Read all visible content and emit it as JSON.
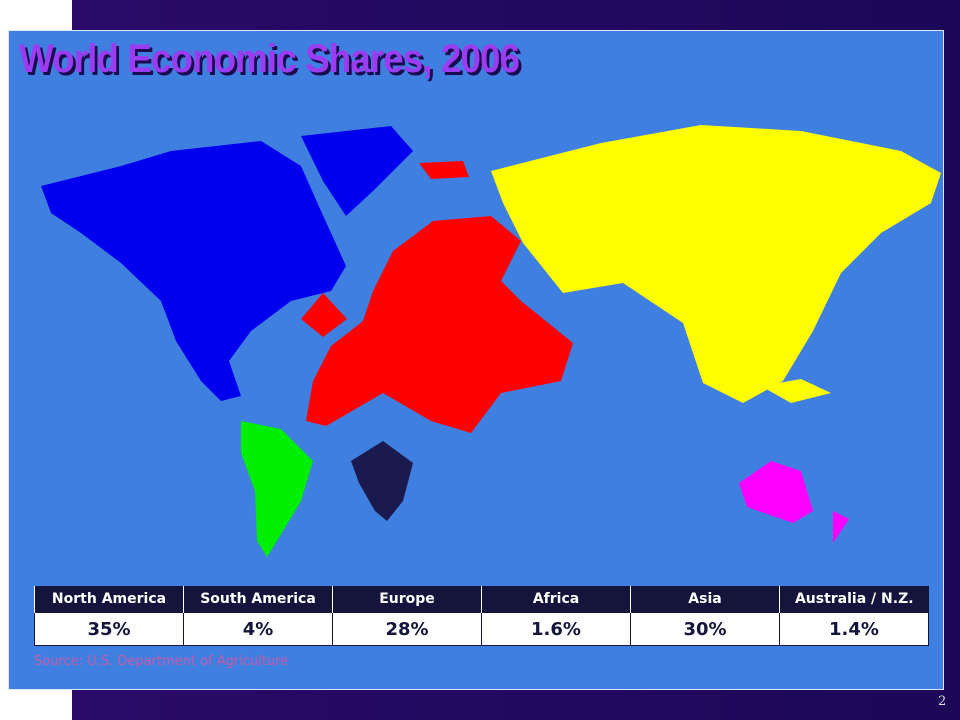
{
  "title": "World Economic Shares, 2006",
  "table": {
    "header": [
      "North America",
      "South America",
      "Europe",
      "Africa",
      "Asia",
      "Australia / N.Z."
    ],
    "rows": [
      [
        "35%",
        "4%",
        "28%",
        "1.6%",
        "30%",
        "1.4%"
      ]
    ]
  },
  "source": "Source: U.S. Department of Agriculture",
  "page_number": "2"
}
